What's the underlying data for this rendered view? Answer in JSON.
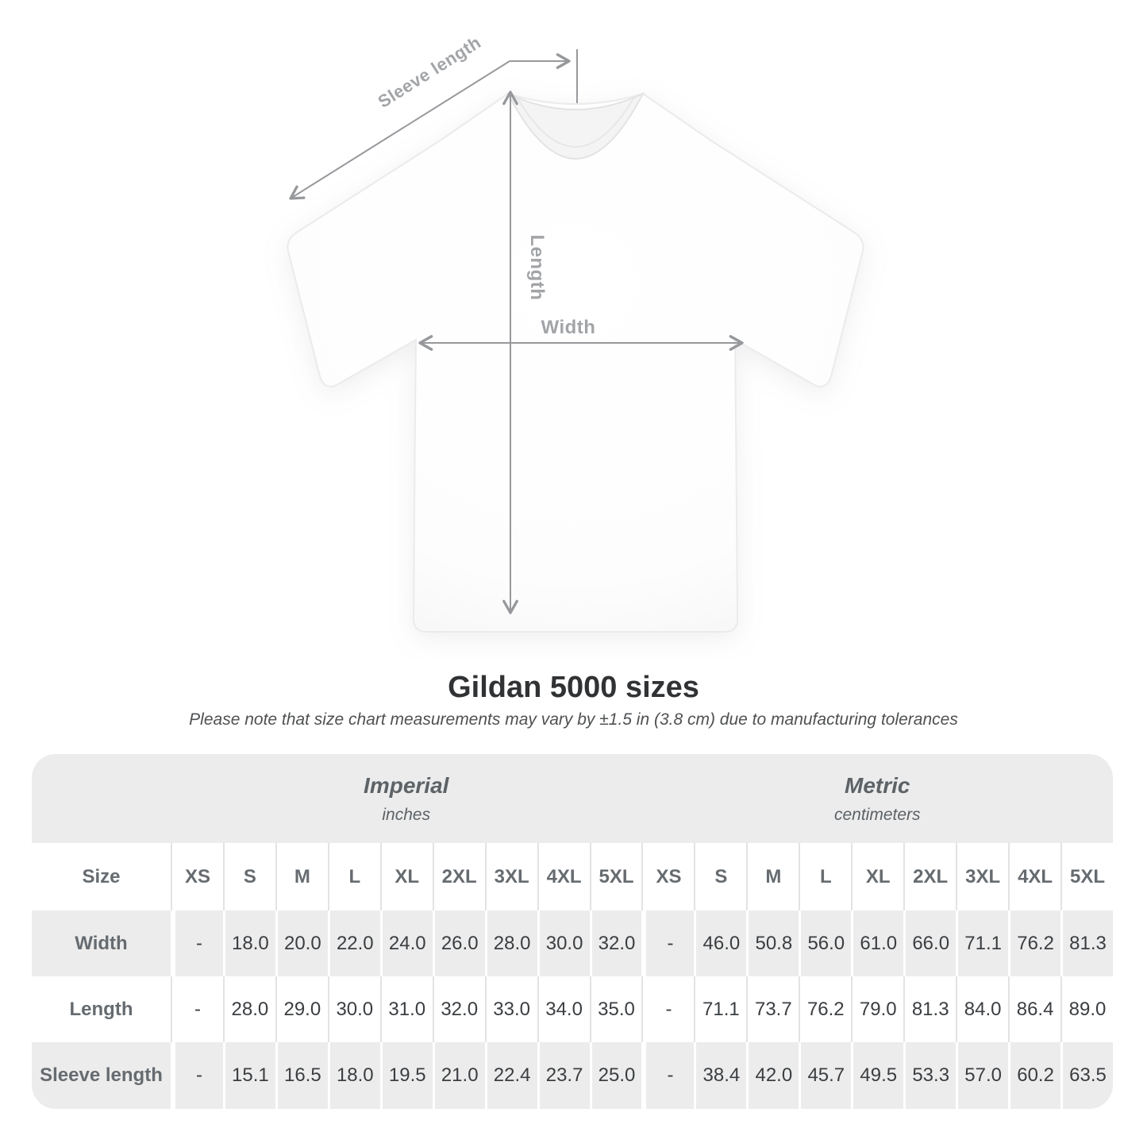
{
  "diagram": {
    "labels": {
      "sleeve_length": "Sleeve length",
      "length": "Length",
      "width": "Width"
    }
  },
  "title": "Gildan 5000 sizes",
  "subtitle": "Please note that size chart measurements may vary by ±1.5 in (3.8 cm) due to manufacturing tolerances",
  "table": {
    "size_label": "Size",
    "groups": [
      {
        "name": "Imperial",
        "unit": "inches"
      },
      {
        "name": "Metric",
        "unit": "centimeters"
      }
    ],
    "sizes": [
      "XS",
      "S",
      "M",
      "L",
      "XL",
      "2XL",
      "3XL",
      "4XL",
      "5XL"
    ],
    "rows": [
      {
        "label": "Width",
        "imperial": [
          "-",
          "18.0",
          "20.0",
          "22.0",
          "24.0",
          "26.0",
          "28.0",
          "30.0",
          "32.0"
        ],
        "metric": [
          "-",
          "46.0",
          "50.8",
          "56.0",
          "61.0",
          "66.0",
          "71.1",
          "76.2",
          "81.3"
        ]
      },
      {
        "label": "Length",
        "imperial": [
          "-",
          "28.0",
          "29.0",
          "30.0",
          "31.0",
          "32.0",
          "33.0",
          "34.0",
          "35.0"
        ],
        "metric": [
          "-",
          "71.1",
          "73.7",
          "76.2",
          "79.0",
          "81.3",
          "84.0",
          "86.4",
          "89.0"
        ]
      },
      {
        "label": "Sleeve length",
        "imperial": [
          "-",
          "15.1",
          "16.5",
          "18.0",
          "19.5",
          "21.0",
          "22.4",
          "23.7",
          "25.0"
        ],
        "metric": [
          "-",
          "38.4",
          "42.0",
          "45.7",
          "49.5",
          "53.3",
          "57.0",
          "60.2",
          "63.5"
        ]
      }
    ]
  },
  "chart_data": {
    "type": "table",
    "title": "Gildan 5000 sizes",
    "note": "Measurements may vary by ±1.5 in (3.8 cm) due to manufacturing tolerances",
    "sizes": [
      "XS",
      "S",
      "M",
      "L",
      "XL",
      "2XL",
      "3XL",
      "4XL",
      "5XL"
    ],
    "units": [
      "inches",
      "centimeters"
    ],
    "measurements": {
      "width_in": [
        null,
        18.0,
        20.0,
        22.0,
        24.0,
        26.0,
        28.0,
        30.0,
        32.0
      ],
      "length_in": [
        null,
        28.0,
        29.0,
        30.0,
        31.0,
        32.0,
        33.0,
        34.0,
        35.0
      ],
      "sleeve_length_in": [
        null,
        15.1,
        16.5,
        18.0,
        19.5,
        21.0,
        22.4,
        23.7,
        25.0
      ],
      "width_cm": [
        null,
        46.0,
        50.8,
        56.0,
        61.0,
        66.0,
        71.1,
        76.2,
        81.3
      ],
      "length_cm": [
        null,
        71.1,
        73.7,
        76.2,
        79.0,
        81.3,
        84.0,
        86.4,
        89.0
      ],
      "sleeve_length_cm": [
        null,
        38.4,
        42.0,
        45.7,
        49.5,
        53.3,
        57.0,
        60.2,
        63.5
      ]
    }
  },
  "colors": {
    "card_gray": "#ececec",
    "value_text": "#3b3e41",
    "label_text": "#666b70",
    "unit_text": "#5d6266",
    "dimension_line": "#96989b",
    "dimension_label": "#a2a4a7",
    "title_text": "#303234",
    "subtitle_text": "#4e5052"
  }
}
